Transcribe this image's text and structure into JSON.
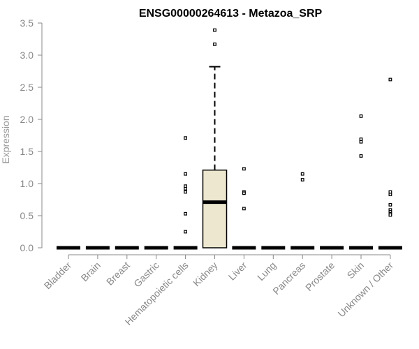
{
  "chart_data": {
    "type": "box",
    "title": "ENSG00000264613 - Metazoa_SRP",
    "xlabel": "",
    "ylabel": "Expression",
    "ylim": [
      0,
      3.5
    ],
    "yticks": [
      "0.0",
      "0.5",
      "1.0",
      "1.5",
      "2.0",
      "2.5",
      "3.0",
      "3.5"
    ],
    "categories": [
      "Bladder",
      "Brain",
      "Breast",
      "Gastric",
      "Hematopoietic cells",
      "Kidney",
      "Liver",
      "Lung",
      "Pancreas",
      "Prostate",
      "Skin",
      "Unknown / Other"
    ],
    "boxes": [
      {
        "category": "Bladder",
        "min": 0,
        "q1": 0,
        "median": 0,
        "q3": 0,
        "max": 0,
        "outliers": []
      },
      {
        "category": "Brain",
        "min": 0,
        "q1": 0,
        "median": 0,
        "q3": 0,
        "max": 0,
        "outliers": []
      },
      {
        "category": "Breast",
        "min": 0,
        "q1": 0,
        "median": 0,
        "q3": 0,
        "max": 0,
        "outliers": []
      },
      {
        "category": "Gastric",
        "min": 0,
        "q1": 0,
        "median": 0,
        "q3": 0,
        "max": 0,
        "outliers": []
      },
      {
        "category": "Hematopoietic cells",
        "min": 0,
        "q1": 0,
        "median": 0,
        "q3": 0,
        "max": 0,
        "outliers": [
          1.71,
          1.15,
          0.96,
          0.92,
          0.87,
          0.53,
          0.25
        ]
      },
      {
        "category": "Kidney",
        "min": 0,
        "q1": 0,
        "median": 0.71,
        "q3": 1.21,
        "max": 2.82,
        "outliers": [
          3.39,
          3.17
        ]
      },
      {
        "category": "Liver",
        "min": 0,
        "q1": 0,
        "median": 0,
        "q3": 0,
        "max": 0,
        "outliers": [
          1.23,
          0.87,
          0.85,
          0.61
        ]
      },
      {
        "category": "Lung",
        "min": 0,
        "q1": 0,
        "median": 0,
        "q3": 0,
        "max": 0,
        "outliers": []
      },
      {
        "category": "Pancreas",
        "min": 0,
        "q1": 0,
        "median": 0,
        "q3": 0,
        "max": 0,
        "outliers": [
          1.15,
          1.06
        ]
      },
      {
        "category": "Prostate",
        "min": 0,
        "q1": 0,
        "median": 0,
        "q3": 0,
        "max": 0,
        "outliers": []
      },
      {
        "category": "Skin",
        "min": 0,
        "q1": 0,
        "median": 0,
        "q3": 0,
        "max": 0,
        "outliers": [
          2.05,
          1.69,
          1.65,
          1.43
        ]
      },
      {
        "category": "Unknown / Other",
        "min": 0,
        "q1": 0,
        "median": 0,
        "q3": 0,
        "max": 0,
        "outliers": [
          2.62,
          0.87,
          0.83,
          0.67,
          0.59,
          0.56,
          0.53,
          0.51
        ]
      }
    ],
    "box_fill": "#ede7cf",
    "grid": false,
    "legend": "none"
  }
}
